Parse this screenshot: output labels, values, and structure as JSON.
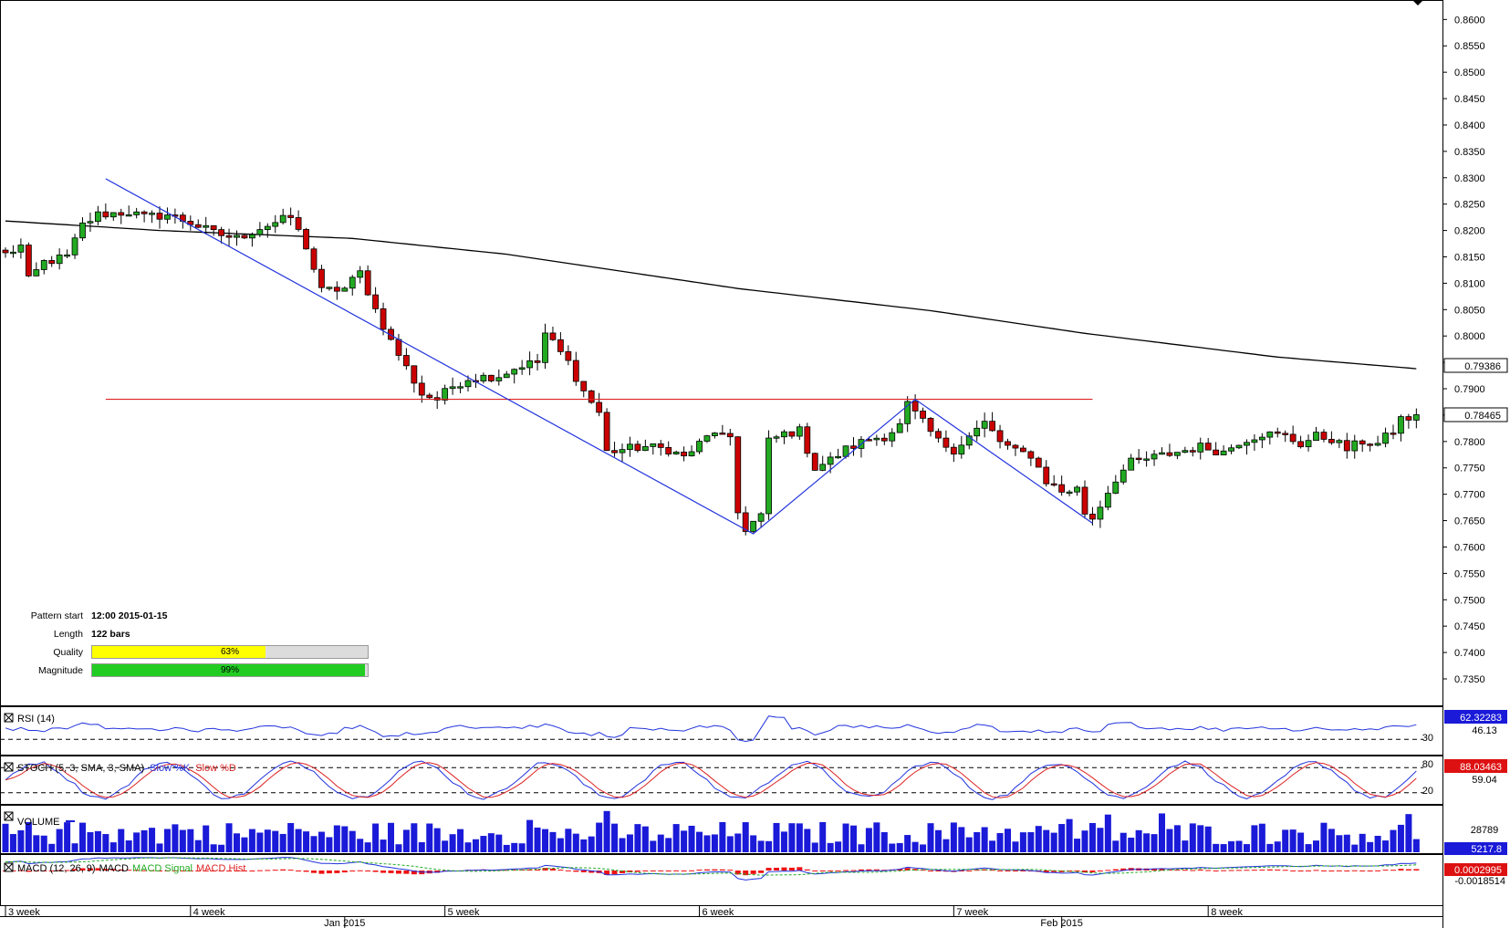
{
  "colors": {
    "bull": "#22aa22",
    "bear": "#cc0000",
    "pattern": "#2233dd",
    "neckline": "#dd2222",
    "ma": "#000000",
    "quality_fill": "#ffff00",
    "magnitude_fill": "#22cc22"
  },
  "info": {
    "pattern_start_label": "Pattern start",
    "pattern_start_value": "12:00 2015-01-15",
    "length_label": "Length",
    "length_value": "122 bars",
    "quality_label": "Quality",
    "quality_value": "63%",
    "quality_fraction": 0.63,
    "magnitude_label": "Magnitude",
    "magnitude_value": "99%",
    "magnitude_fraction": 0.99
  },
  "panels": {
    "rsi": {
      "title": "RSI (14)",
      "current": "62.32283",
      "mid": "46.13",
      "level": "30"
    },
    "stoch": {
      "title": "STOCH (5, 3, SMA, 3, SMA)",
      "k_label": "Slow %K",
      "d_label": "Slow %D",
      "current": "88.03463",
      "mid": "59.04",
      "upper": "80",
      "lower": "20"
    },
    "volume": {
      "title": "VOLUME",
      "max": "28789",
      "current": "5217.8"
    },
    "macd": {
      "title": "MACD (12, 26, 9)",
      "macd_label": "MACD",
      "signal_label": "MACD Signal",
      "hist_label": "MACD Hist",
      "current": "0.0002995",
      "low": "-0.0018514"
    }
  },
  "chart_data": {
    "type": "candlestick",
    "ylim": [
      0.7305,
      0.863
    ],
    "y_ticks": [
      "0.8600",
      "0.8550",
      "0.8500",
      "0.8450",
      "0.8400",
      "0.8350",
      "0.8300",
      "0.8250",
      "0.8200",
      "0.8150",
      "0.8100",
      "0.8050",
      "0.8000",
      "0.7950",
      "0.7900",
      "0.7850",
      "0.7800",
      "0.7750",
      "0.7700",
      "0.7650",
      "0.7600",
      "0.7550",
      "0.7500",
      "0.7450",
      "0.7400",
      "0.7350"
    ],
    "current_price": "0.78465",
    "ma_value": "0.79386",
    "x_labels": [
      {
        "label": "3 week",
        "bar": 0
      },
      {
        "label": "4 week",
        "bar": 24
      },
      {
        "label": "5 week",
        "bar": 57
      },
      {
        "label": "6 week",
        "bar": 90
      },
      {
        "label": "7 week",
        "bar": 123
      },
      {
        "label": "8 week",
        "bar": 156
      }
    ],
    "x_months": [
      {
        "label": "Jan 2015",
        "bar": 44
      },
      {
        "label": "Feb 2015",
        "bar": 137
      }
    ],
    "pattern_points": [
      [
        13,
        0.8298
      ],
      [
        97,
        0.7625
      ],
      [
        118,
        0.788
      ],
      [
        141,
        0.7645
      ]
    ],
    "neckline": {
      "price": 0.788,
      "from_bar": 13,
      "to_bar": 141
    },
    "moving_average": [
      [
        0,
        0.8218
      ],
      [
        20,
        0.82
      ],
      [
        45,
        0.8185
      ],
      [
        65,
        0.8155
      ],
      [
        95,
        0.809
      ],
      [
        120,
        0.8048
      ],
      [
        140,
        0.8005
      ],
      [
        165,
        0.796
      ],
      [
        183,
        0.7938
      ]
    ],
    "keypoints": [
      [
        0,
        0.8155
      ],
      [
        2,
        0.817
      ],
      [
        3,
        0.8105
      ],
      [
        5,
        0.814
      ],
      [
        8,
        0.815
      ],
      [
        10,
        0.821
      ],
      [
        12,
        0.823
      ],
      [
        16,
        0.8235
      ],
      [
        18,
        0.8225
      ],
      [
        21,
        0.823
      ],
      [
        24,
        0.8215
      ],
      [
        27,
        0.8195
      ],
      [
        30,
        0.8185
      ],
      [
        33,
        0.8205
      ],
      [
        37,
        0.8225
      ],
      [
        39,
        0.817
      ],
      [
        41,
        0.8085
      ],
      [
        44,
        0.809
      ],
      [
        46,
        0.812
      ],
      [
        48,
        0.805
      ],
      [
        50,
        0.799
      ],
      [
        52,
        0.794
      ],
      [
        54,
        0.789
      ],
      [
        56,
        0.788
      ],
      [
        58,
        0.7905
      ],
      [
        60,
        0.792
      ],
      [
        64,
        0.7925
      ],
      [
        67,
        0.7945
      ],
      [
        69,
        0.795
      ],
      [
        70,
        0.8005
      ],
      [
        73,
        0.795
      ],
      [
        75,
        0.7895
      ],
      [
        77,
        0.7855
      ],
      [
        78,
        0.778
      ],
      [
        80,
        0.7785
      ],
      [
        83,
        0.779
      ],
      [
        86,
        0.7785
      ],
      [
        88,
        0.777
      ],
      [
        90,
        0.7795
      ],
      [
        92,
        0.782
      ],
      [
        94,
        0.78
      ],
      [
        95,
        0.7665
      ],
      [
        96,
        0.7635
      ],
      [
        98,
        0.766
      ],
      [
        99,
        0.78
      ],
      [
        101,
        0.7815
      ],
      [
        103,
        0.782
      ],
      [
        105,
        0.775
      ],
      [
        107,
        0.7765
      ],
      [
        109,
        0.7785
      ],
      [
        112,
        0.7805
      ],
      [
        114,
        0.781
      ],
      [
        116,
        0.783
      ],
      [
        117,
        0.787
      ],
      [
        119,
        0.7835
      ],
      [
        121,
        0.78
      ],
      [
        123,
        0.7785
      ],
      [
        125,
        0.781
      ],
      [
        127,
        0.7835
      ],
      [
        129,
        0.78
      ],
      [
        131,
        0.778
      ],
      [
        133,
        0.7775
      ],
      [
        135,
        0.7725
      ],
      [
        137,
        0.7705
      ],
      [
        139,
        0.771
      ],
      [
        140,
        0.7665
      ],
      [
        141,
        0.7655
      ],
      [
        142,
        0.768
      ],
      [
        144,
        0.773
      ],
      [
        146,
        0.776
      ],
      [
        149,
        0.777
      ],
      [
        152,
        0.778
      ],
      [
        155,
        0.779
      ],
      [
        158,
        0.778
      ],
      [
        160,
        0.78
      ],
      [
        163,
        0.7815
      ],
      [
        166,
        0.781
      ],
      [
        168,
        0.7795
      ],
      [
        170,
        0.781
      ],
      [
        172,
        0.7805
      ],
      [
        174,
        0.7785
      ],
      [
        176,
        0.78
      ],
      [
        178,
        0.7795
      ],
      [
        180,
        0.782
      ],
      [
        181,
        0.7843
      ],
      [
        183,
        0.7845
      ]
    ]
  }
}
